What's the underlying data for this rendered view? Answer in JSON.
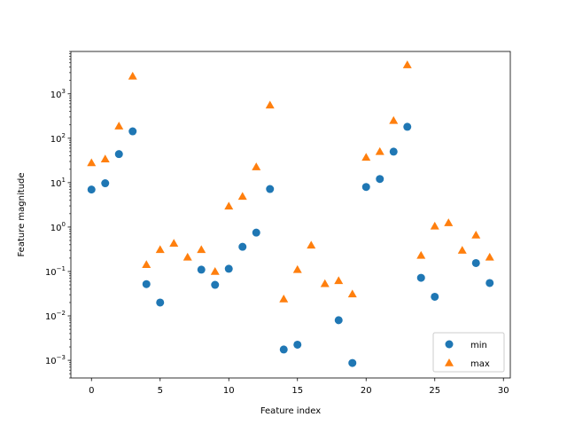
{
  "chart_data": {
    "type": "scatter",
    "title": "",
    "xlabel": "Feature index",
    "ylabel": "Feature magnitude",
    "xlim": [
      -1.5,
      30.5
    ],
    "ylim": [
      0.0004,
      9000
    ],
    "yscale": "log",
    "grid": false,
    "legend_position": "lower-right",
    "xticks": [
      0,
      5,
      10,
      15,
      20,
      25,
      30
    ],
    "xtick_labels": [
      "0",
      "5",
      "10",
      "15",
      "20",
      "25",
      "30"
    ],
    "yticks": [
      0.001,
      0.01,
      0.1,
      1,
      10,
      100,
      1000
    ],
    "ytick_labels": [
      {
        "base": "10",
        "exp": "−3"
      },
      {
        "base": "10",
        "exp": "−2"
      },
      {
        "base": "10",
        "exp": "−1"
      },
      {
        "base": "10",
        "exp": "0"
      },
      {
        "base": "10",
        "exp": "1"
      },
      {
        "base": "10",
        "exp": "2"
      },
      {
        "base": "10",
        "exp": "3"
      }
    ],
    "series": [
      {
        "name": "min",
        "marker": "circle",
        "color": "#1f77b4",
        "x": [
          0,
          1,
          2,
          3,
          4,
          5,
          8,
          9,
          10,
          11,
          12,
          13,
          14,
          15,
          18,
          19,
          20,
          21,
          22,
          23,
          24,
          25,
          28,
          29
        ],
        "y": [
          7.0,
          9.7,
          44,
          143,
          0.052,
          0.02,
          0.11,
          0.05,
          0.115,
          0.36,
          0.75,
          7.2,
          0.00175,
          0.00225,
          0.008,
          0.00087,
          8.0,
          12.1,
          50,
          181,
          0.072,
          0.027,
          0.155,
          0.055
        ]
      },
      {
        "name": "max",
        "marker": "triangle",
        "color": "#ff7f0e",
        "x": [
          0,
          1,
          2,
          3,
          4,
          5,
          6,
          7,
          8,
          9,
          10,
          11,
          12,
          13,
          14,
          15,
          16,
          17,
          18,
          19,
          20,
          21,
          22,
          23,
          24,
          25,
          26,
          27,
          28,
          29
        ],
        "y": [
          28,
          34,
          188,
          2500,
          0.143,
          0.31,
          0.43,
          0.21,
          0.31,
          0.1,
          2.95,
          4.9,
          22.6,
          555,
          0.024,
          0.11,
          0.39,
          0.053,
          0.062,
          0.031,
          37,
          50,
          250,
          4500,
          0.23,
          1.05,
          1.25,
          0.3,
          0.66,
          0.21
        ]
      }
    ]
  }
}
